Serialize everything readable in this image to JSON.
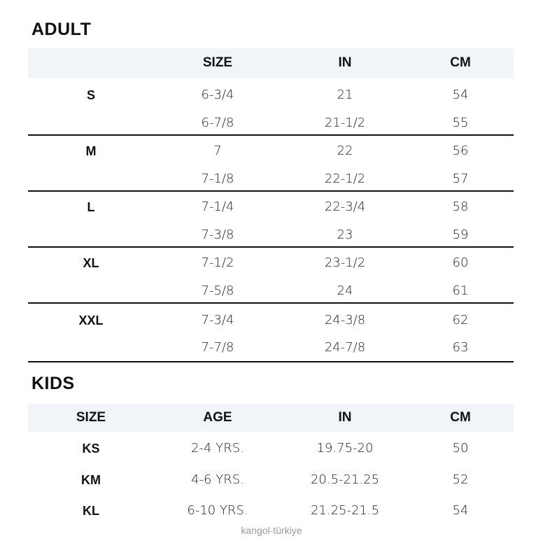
{
  "adult": {
    "title": "ADULT",
    "headers": [
      "",
      "SIZE",
      "IN",
      "CM"
    ],
    "rows": [
      [
        "S",
        "6-3/4",
        "21",
        "54"
      ],
      [
        "",
        "6-7/8",
        "21-1/2",
        "55"
      ],
      [
        "M",
        "7",
        "22",
        "56"
      ],
      [
        "",
        "7-1/8",
        "22-1/2",
        "57"
      ],
      [
        "L",
        "7-1/4",
        "22-3/4",
        "58"
      ],
      [
        "",
        "7-3/8",
        "23",
        "59"
      ],
      [
        "XL",
        "7-1/2",
        "23-1/2",
        "60"
      ],
      [
        "",
        "7-5/8",
        "24",
        "61"
      ],
      [
        "XXL",
        "7-3/4",
        "24-3/8",
        "62"
      ],
      [
        "",
        "7-7/8",
        "24-7/8",
        "63"
      ]
    ]
  },
  "kids": {
    "title": "KIDS",
    "headers": [
      "SIZE",
      "AGE",
      "IN",
      "CM"
    ],
    "rows": [
      [
        "KS",
        "2-4 YRS.",
        "19.75-20",
        "50"
      ],
      [
        "KM",
        "4-6 YRS.",
        "20.5-21.25",
        "52"
      ],
      [
        "KL",
        "6-10 YRS.",
        "21.25-21.5",
        "54"
      ]
    ]
  },
  "watermark": "kangol-türkiye",
  "colors": {
    "header_band": "#f1f4f9",
    "rule": "#111111"
  }
}
